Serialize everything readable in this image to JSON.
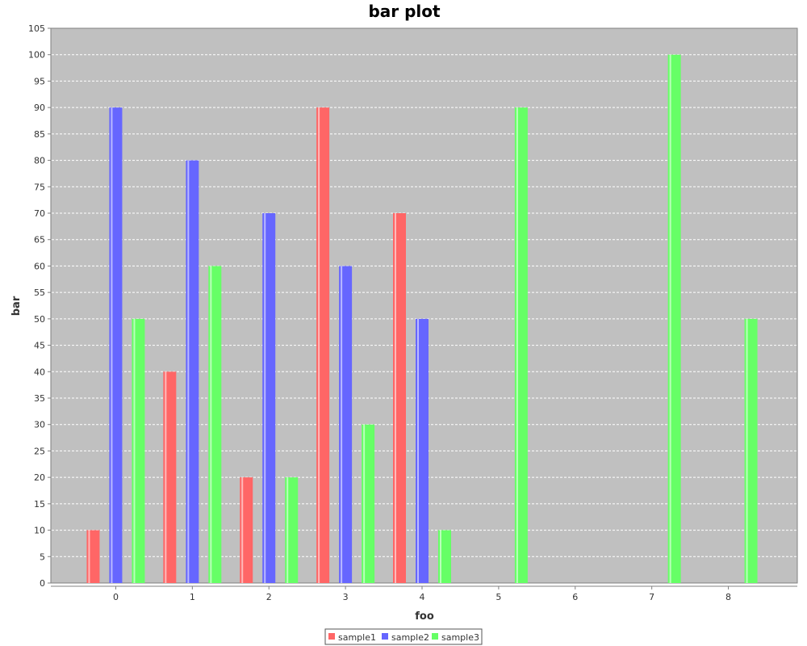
{
  "chart_data": {
    "type": "bar",
    "title": "bar plot",
    "xlabel": "foo",
    "ylabel": "bar",
    "categories": [
      "0",
      "1",
      "2",
      "3",
      "4",
      "5",
      "6",
      "7",
      "8"
    ],
    "ylim": [
      0,
      105
    ],
    "ytick_step": 5,
    "grid": true,
    "legend_position": "bottom-center",
    "series": [
      {
        "name": "sample1",
        "color": "#FF6666",
        "values": [
          10,
          40,
          20,
          90,
          70,
          null,
          null,
          null,
          null
        ]
      },
      {
        "name": "sample2",
        "color": "#6666FF",
        "values": [
          90,
          80,
          70,
          60,
          50,
          null,
          null,
          null,
          null
        ]
      },
      {
        "name": "sample3",
        "color": "#66FF66",
        "values": [
          50,
          60,
          20,
          30,
          10,
          90,
          null,
          100,
          50
        ]
      }
    ]
  }
}
